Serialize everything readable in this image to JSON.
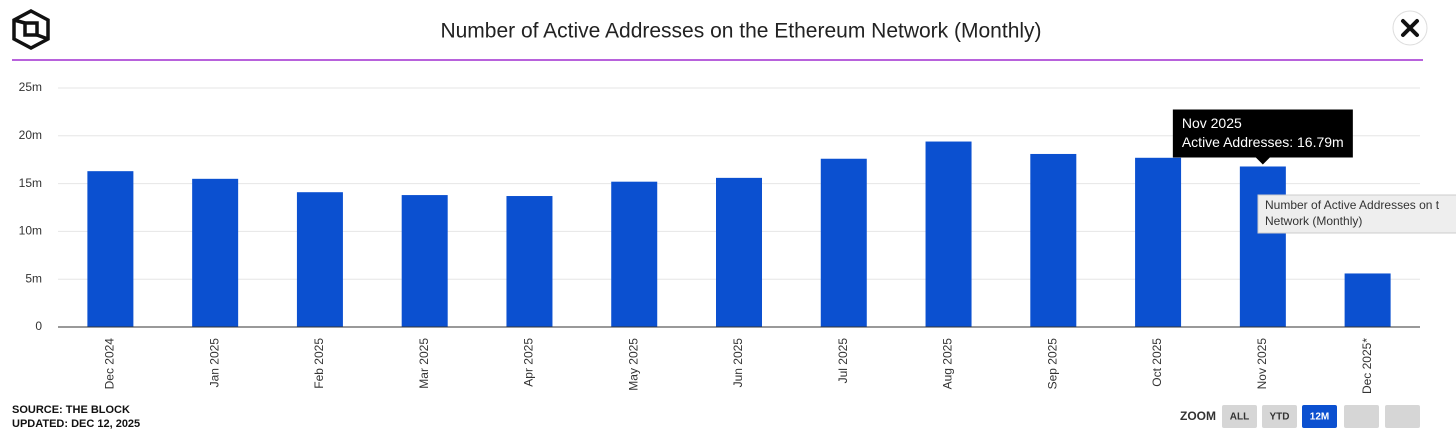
{
  "chart_data": {
    "type": "bar",
    "title": "Number of Active Addresses on the Ethereum Network (Monthly)",
    "categories": [
      "Dec 2024",
      "Jan 2025",
      "Feb 2025",
      "Mar 2025",
      "Apr 2025",
      "May 2025",
      "Jun 2025",
      "Jul 2025",
      "Aug 2025",
      "Sep 2025",
      "Oct 2025",
      "Nov 2025",
      "Dec 2025*"
    ],
    "values": [
      16.3,
      15.5,
      14.1,
      13.8,
      13.7,
      15.2,
      15.6,
      17.6,
      19.4,
      18.1,
      17.7,
      16.79,
      5.6
    ],
    "color": "#0b50d0",
    "ylim": [
      0,
      25
    ],
    "yticks": [
      0,
      {
        "value": 5,
        "label": "5m"
      },
      {
        "value": 10,
        "label": "10m"
      },
      {
        "value": 15,
        "label": "15m"
      },
      {
        "value": 20,
        "label": "20m"
      },
      {
        "value": 25,
        "label": "25m"
      }
    ],
    "grid": true,
    "tooltip": {
      "title": "Nov 2025",
      "label": "Active Addresses: 16.79m"
    },
    "hover_hint": [
      "Number of Active Addresses on t",
      "Network (Monthly)"
    ]
  },
  "footer": {
    "source": "SOURCE: THE BLOCK",
    "updated": "UPDATED: DEC 12, 2025"
  },
  "zoom": {
    "label": "ZOOM",
    "buttons": [
      "ALL",
      "YTD",
      "12M"
    ]
  }
}
